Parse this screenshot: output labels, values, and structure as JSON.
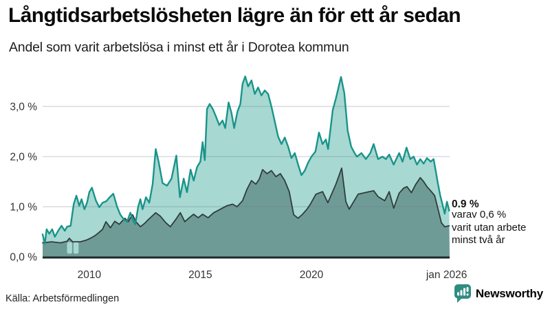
{
  "header": {
    "title": "Långtidsarbetslösheten lägre än för ett år sedan",
    "subtitle": "Andel som varit arbetslösa i minst ett år i Dorotea kommun"
  },
  "annotation": {
    "value_label": "0.9 %",
    "line1": "varav 0,6 %",
    "line2": "varit utan arbete",
    "line3": "minst två år"
  },
  "footer": {
    "source": "Källa: Arbetsförmedlingen",
    "brand": "Newsworthy"
  },
  "colors": {
    "accent_teal": "#18948a",
    "light_fill": "#a7d8d1",
    "dark_fill": "#6f9b96",
    "dark_line": "#2e3d3c",
    "axis_line": "#1c2929",
    "brand_teal": "#2f8c82",
    "gridline": "rgba(108,115,148,0.28)"
  },
  "chart_data": {
    "type": "area",
    "title": "Långtidsarbetslösheten lägre än för ett år sedan",
    "subtitle": "Andel som varit arbetslösa i minst ett år i Dorotea kommun",
    "unit": "%",
    "legend_position": "none",
    "grid": true,
    "x_axis": {
      "range": [
        2007.9,
        2026.22
      ],
      "ticks": [
        {
          "year": 2010,
          "label": "2010"
        },
        {
          "year": 2015,
          "label": "2015"
        },
        {
          "year": 2020,
          "label": "2020"
        },
        {
          "year": 2026.083,
          "label": "jan 2026"
        }
      ]
    },
    "y_axis": {
      "range": [
        0,
        3.7
      ],
      "ticks": [
        {
          "value": 0,
          "label": "0,0 %"
        },
        {
          "value": 1,
          "label": "1,0 %"
        },
        {
          "value": 2,
          "label": "2,0 %"
        },
        {
          "value": 3,
          "label": "3,0 %"
        }
      ]
    },
    "series": [
      {
        "name": "arbetslösa minst ett år",
        "area_name": "area-minst-ett-ar",
        "line_name": "line-minst-ett-ar",
        "color": "#18948a",
        "fill": "#a7d8d1",
        "stroke_width": 2.4,
        "last_value": 0.9,
        "points": [
          [
            2007.9,
            0.45
          ],
          [
            2008.0,
            0.26
          ],
          [
            2008.08,
            0.55
          ],
          [
            2008.2,
            0.46
          ],
          [
            2008.33,
            0.55
          ],
          [
            2008.45,
            0.4
          ],
          [
            2008.6,
            0.52
          ],
          [
            2008.75,
            0.62
          ],
          [
            2008.9,
            0.52
          ],
          [
            2009.0,
            0.6
          ],
          [
            2009.16,
            0.62
          ],
          [
            2009.3,
            1.05
          ],
          [
            2009.42,
            1.22
          ],
          [
            2009.55,
            1.02
          ],
          [
            2009.65,
            1.15
          ],
          [
            2009.78,
            0.95
          ],
          [
            2009.9,
            1.08
          ],
          [
            2010.0,
            1.29
          ],
          [
            2010.12,
            1.38
          ],
          [
            2010.3,
            1.12
          ],
          [
            2010.45,
            0.99
          ],
          [
            2010.6,
            1.08
          ],
          [
            2010.77,
            1.11
          ],
          [
            2010.9,
            1.18
          ],
          [
            2011.08,
            1.26
          ],
          [
            2011.25,
            1.0
          ],
          [
            2011.4,
            0.84
          ],
          [
            2011.55,
            0.75
          ],
          [
            2011.7,
            0.7
          ],
          [
            2011.85,
            0.88
          ],
          [
            2012.0,
            0.7
          ],
          [
            2012.07,
            0.65
          ],
          [
            2012.2,
            1.0
          ],
          [
            2012.3,
            1.15
          ],
          [
            2012.4,
            0.95
          ],
          [
            2012.55,
            1.19
          ],
          [
            2012.7,
            1.08
          ],
          [
            2012.85,
            1.45
          ],
          [
            2012.99,
            2.15
          ],
          [
            2013.12,
            1.9
          ],
          [
            2013.3,
            1.47
          ],
          [
            2013.5,
            1.42
          ],
          [
            2013.7,
            1.56
          ],
          [
            2013.92,
            2.02
          ],
          [
            2014.08,
            1.19
          ],
          [
            2014.25,
            1.56
          ],
          [
            2014.4,
            1.29
          ],
          [
            2014.56,
            1.74
          ],
          [
            2014.7,
            1.52
          ],
          [
            2014.85,
            1.79
          ],
          [
            2015.0,
            1.9
          ],
          [
            2015.1,
            2.29
          ],
          [
            2015.2,
            1.93
          ],
          [
            2015.3,
            2.95
          ],
          [
            2015.42,
            3.05
          ],
          [
            2015.56,
            2.95
          ],
          [
            2015.7,
            2.8
          ],
          [
            2015.85,
            2.63
          ],
          [
            2016.0,
            2.72
          ],
          [
            2016.12,
            2.57
          ],
          [
            2016.27,
            3.08
          ],
          [
            2016.4,
            2.87
          ],
          [
            2016.52,
            2.57
          ],
          [
            2016.67,
            2.9
          ],
          [
            2016.8,
            3.05
          ],
          [
            2016.9,
            3.45
          ],
          [
            2017.02,
            3.6
          ],
          [
            2017.15,
            3.4
          ],
          [
            2017.3,
            3.52
          ],
          [
            2017.45,
            3.25
          ],
          [
            2017.6,
            3.38
          ],
          [
            2017.75,
            3.22
          ],
          [
            2017.9,
            3.32
          ],
          [
            2018.05,
            3.25
          ],
          [
            2018.2,
            3.0
          ],
          [
            2018.35,
            2.7
          ],
          [
            2018.5,
            2.4
          ],
          [
            2018.65,
            2.25
          ],
          [
            2018.8,
            2.38
          ],
          [
            2018.95,
            2.2
          ],
          [
            2019.1,
            1.97
          ],
          [
            2019.25,
            2.07
          ],
          [
            2019.4,
            1.84
          ],
          [
            2019.55,
            1.63
          ],
          [
            2019.7,
            1.72
          ],
          [
            2019.85,
            1.88
          ],
          [
            2020.0,
            2.0
          ],
          [
            2020.18,
            2.1
          ],
          [
            2020.34,
            2.48
          ],
          [
            2020.5,
            2.25
          ],
          [
            2020.65,
            2.34
          ],
          [
            2020.75,
            2.15
          ],
          [
            2020.96,
            2.93
          ],
          [
            2021.1,
            3.16
          ],
          [
            2021.33,
            3.59
          ],
          [
            2021.48,
            3.27
          ],
          [
            2021.63,
            2.52
          ],
          [
            2021.79,
            2.2
          ],
          [
            2021.94,
            2.07
          ],
          [
            2022.05,
            2.0
          ],
          [
            2022.25,
            2.07
          ],
          [
            2022.45,
            1.95
          ],
          [
            2022.65,
            2.07
          ],
          [
            2022.8,
            2.25
          ],
          [
            2023.0,
            1.95
          ],
          [
            2023.2,
            2.0
          ],
          [
            2023.35,
            1.95
          ],
          [
            2023.5,
            2.04
          ],
          [
            2023.7,
            1.84
          ],
          [
            2023.95,
            2.07
          ],
          [
            2024.1,
            1.9
          ],
          [
            2024.28,
            2.18
          ],
          [
            2024.45,
            1.95
          ],
          [
            2024.6,
            2.0
          ],
          [
            2024.75,
            1.84
          ],
          [
            2024.9,
            1.95
          ],
          [
            2025.05,
            1.86
          ],
          [
            2025.2,
            1.97
          ],
          [
            2025.37,
            1.9
          ],
          [
            2025.5,
            1.95
          ],
          [
            2025.6,
            1.7
          ],
          [
            2025.68,
            1.49
          ],
          [
            2025.8,
            1.22
          ],
          [
            2025.9,
            1.04
          ],
          [
            2026.0,
            0.86
          ],
          [
            2026.1,
            1.1
          ],
          [
            2026.2,
            0.92
          ]
        ]
      },
      {
        "name": "varav arbetslösa minst två år",
        "area_name": "area-minst-tva-ar",
        "line_name": "line-minst-tva-ar",
        "color": "#2e3d3c",
        "fill": "#6f9b96",
        "stroke_width": 1.8,
        "last_value": 0.6,
        "points": [
          [
            2007.9,
            0.28
          ],
          [
            2008.3,
            0.3
          ],
          [
            2008.7,
            0.28
          ],
          [
            2009.0,
            0.31
          ],
          [
            2009.1,
            0.37
          ],
          [
            2009.25,
            0.3
          ],
          [
            2009.6,
            0.3
          ],
          [
            2009.85,
            0.33
          ],
          [
            2010.05,
            0.37
          ],
          [
            2010.25,
            0.42
          ],
          [
            2010.45,
            0.49
          ],
          [
            2010.6,
            0.55
          ],
          [
            2010.75,
            0.7
          ],
          [
            2010.95,
            0.58
          ],
          [
            2011.15,
            0.71
          ],
          [
            2011.35,
            0.65
          ],
          [
            2011.6,
            0.77
          ],
          [
            2011.75,
            0.7
          ],
          [
            2011.95,
            0.84
          ],
          [
            2012.1,
            0.7
          ],
          [
            2012.3,
            0.6
          ],
          [
            2012.5,
            0.67
          ],
          [
            2012.65,
            0.74
          ],
          [
            2012.99,
            0.88
          ],
          [
            2013.2,
            0.81
          ],
          [
            2013.45,
            0.68
          ],
          [
            2013.65,
            0.6
          ],
          [
            2013.9,
            0.75
          ],
          [
            2014.1,
            0.88
          ],
          [
            2014.3,
            0.7
          ],
          [
            2014.5,
            0.78
          ],
          [
            2014.7,
            0.85
          ],
          [
            2014.9,
            0.78
          ],
          [
            2015.1,
            0.85
          ],
          [
            2015.35,
            0.78
          ],
          [
            2015.6,
            0.88
          ],
          [
            2015.9,
            0.95
          ],
          [
            2016.2,
            1.02
          ],
          [
            2016.45,
            1.05
          ],
          [
            2016.65,
            1.0
          ],
          [
            2016.9,
            1.12
          ],
          [
            2017.1,
            1.35
          ],
          [
            2017.3,
            1.52
          ],
          [
            2017.5,
            1.45
          ],
          [
            2017.65,
            1.55
          ],
          [
            2017.8,
            1.74
          ],
          [
            2018.0,
            1.66
          ],
          [
            2018.2,
            1.72
          ],
          [
            2018.4,
            1.6
          ],
          [
            2018.6,
            1.66
          ],
          [
            2018.8,
            1.52
          ],
          [
            2019.0,
            1.3
          ],
          [
            2019.2,
            0.84
          ],
          [
            2019.4,
            0.77
          ],
          [
            2019.6,
            0.85
          ],
          [
            2019.8,
            0.95
          ],
          [
            2019.95,
            1.05
          ],
          [
            2020.2,
            1.25
          ],
          [
            2020.5,
            1.3
          ],
          [
            2020.74,
            1.08
          ],
          [
            2021.1,
            1.45
          ],
          [
            2021.36,
            1.77
          ],
          [
            2021.55,
            1.1
          ],
          [
            2021.7,
            0.95
          ],
          [
            2022.1,
            1.25
          ],
          [
            2022.5,
            1.29
          ],
          [
            2022.8,
            1.32
          ],
          [
            2023.0,
            1.2
          ],
          [
            2023.3,
            1.12
          ],
          [
            2023.5,
            1.3
          ],
          [
            2023.7,
            0.97
          ],
          [
            2023.95,
            1.27
          ],
          [
            2024.15,
            1.37
          ],
          [
            2024.3,
            1.4
          ],
          [
            2024.5,
            1.28
          ],
          [
            2024.7,
            1.45
          ],
          [
            2024.9,
            1.58
          ],
          [
            2025.05,
            1.5
          ],
          [
            2025.2,
            1.4
          ],
          [
            2025.4,
            1.3
          ],
          [
            2025.55,
            1.22
          ],
          [
            2025.7,
            0.95
          ],
          [
            2025.85,
            0.68
          ],
          [
            2026.0,
            0.6
          ],
          [
            2026.2,
            0.62
          ]
        ]
      }
    ],
    "dark_fill_gaps": [
      {
        "from": 2009.0,
        "to": 2009.23
      },
      {
        "from": 2009.29,
        "to": 2009.52
      }
    ],
    "annotation": {
      "value_label": "0.9 %",
      "text": "varav 0,6 % varit utan arbete minst två år"
    }
  }
}
